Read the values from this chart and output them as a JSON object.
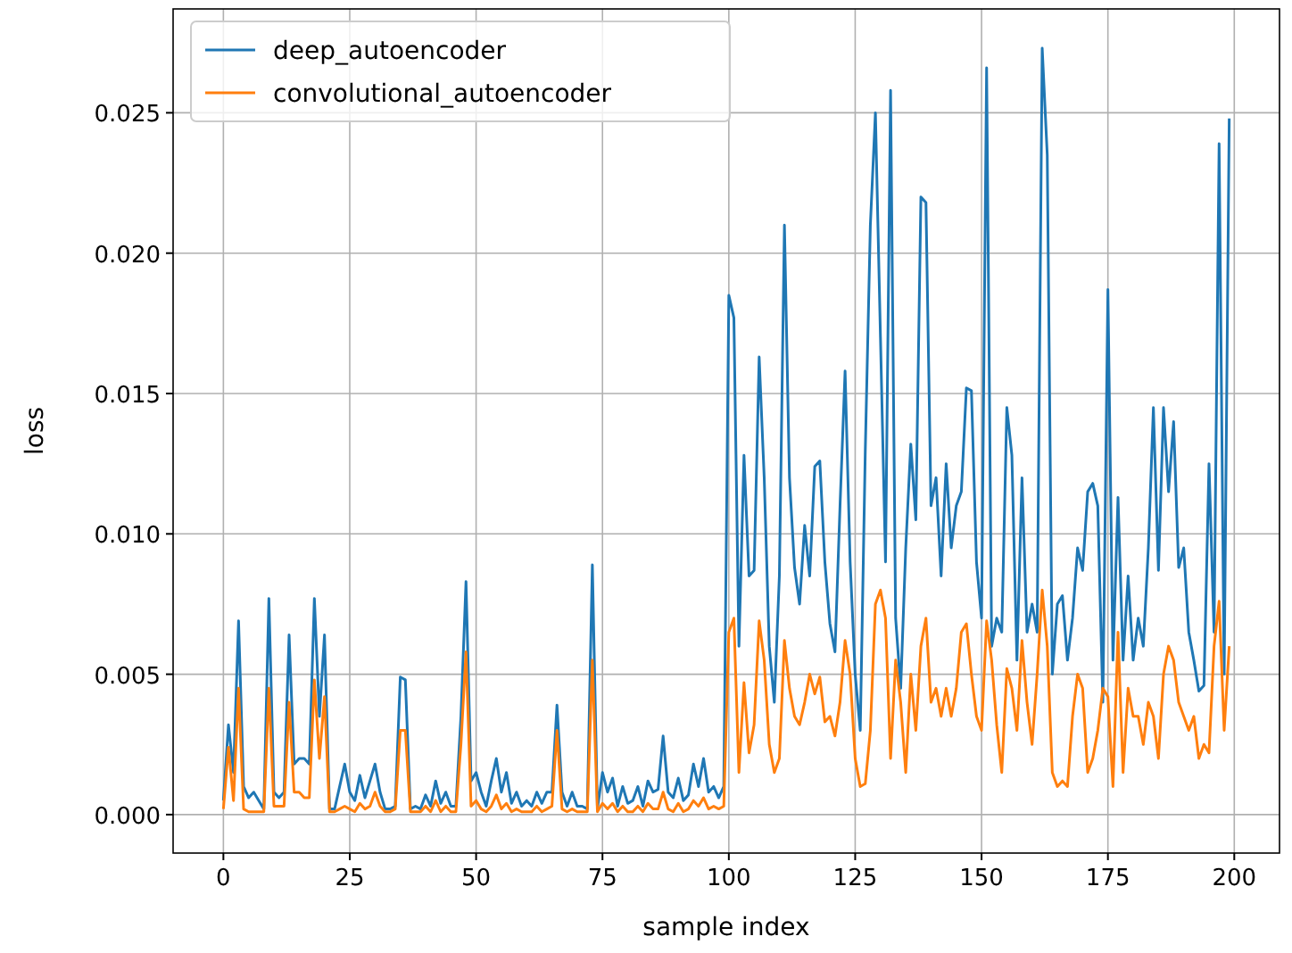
{
  "chart_data": {
    "type": "line",
    "xlabel": "sample index",
    "ylabel": "loss",
    "x": [
      0,
      1,
      2,
      3,
      4,
      5,
      6,
      7,
      8,
      9,
      10,
      11,
      12,
      13,
      14,
      15,
      16,
      17,
      18,
      19,
      20,
      21,
      22,
      23,
      24,
      25,
      26,
      27,
      28,
      29,
      30,
      31,
      32,
      33,
      34,
      35,
      36,
      37,
      38,
      39,
      40,
      41,
      42,
      43,
      44,
      45,
      46,
      47,
      48,
      49,
      50,
      51,
      52,
      53,
      54,
      55,
      56,
      57,
      58,
      59,
      60,
      61,
      62,
      63,
      64,
      65,
      66,
      67,
      68,
      69,
      70,
      71,
      72,
      73,
      74,
      75,
      76,
      77,
      78,
      79,
      80,
      81,
      82,
      83,
      84,
      85,
      86,
      87,
      88,
      89,
      90,
      91,
      92,
      93,
      94,
      95,
      96,
      97,
      98,
      99,
      100,
      101,
      102,
      103,
      104,
      105,
      106,
      107,
      108,
      109,
      110,
      111,
      112,
      113,
      114,
      115,
      116,
      117,
      118,
      119,
      120,
      121,
      122,
      123,
      124,
      125,
      126,
      127,
      128,
      129,
      130,
      131,
      132,
      133,
      134,
      135,
      136,
      137,
      138,
      139,
      140,
      141,
      142,
      143,
      144,
      145,
      146,
      147,
      148,
      149,
      150,
      151,
      152,
      153,
      154,
      155,
      156,
      157,
      158,
      159,
      160,
      161,
      162,
      163,
      164,
      165,
      166,
      167,
      168,
      169,
      170,
      171,
      172,
      173,
      174,
      175,
      176,
      177,
      178,
      179,
      180,
      181,
      182,
      183,
      184,
      185,
      186,
      187,
      188,
      189,
      190,
      191,
      192,
      193,
      194,
      195,
      196,
      197,
      198,
      199
    ],
    "series": [
      {
        "name": "deep_autoencoder",
        "color": "#1f77b4",
        "values": [
          0.0005,
          0.0032,
          0.0015,
          0.0069,
          0.001,
          0.0006,
          0.0008,
          0.0005,
          0.0002,
          0.0077,
          0.0008,
          0.0006,
          0.0008,
          0.0064,
          0.0018,
          0.002,
          0.002,
          0.0018,
          0.0077,
          0.0035,
          0.0064,
          0.0002,
          0.0002,
          0.001,
          0.0018,
          0.0008,
          0.0005,
          0.0014,
          0.0006,
          0.0012,
          0.0018,
          0.0008,
          0.0002,
          0.0002,
          0.0003,
          0.0049,
          0.0048,
          0.0002,
          0.0003,
          0.0002,
          0.0007,
          0.0003,
          0.0012,
          0.0004,
          0.0008,
          0.0003,
          0.0003,
          0.0035,
          0.0083,
          0.0012,
          0.0015,
          0.0008,
          0.0003,
          0.0012,
          0.002,
          0.0008,
          0.0015,
          0.0004,
          0.0008,
          0.0003,
          0.0005,
          0.0003,
          0.0008,
          0.0004,
          0.0008,
          0.0008,
          0.0039,
          0.0008,
          0.0003,
          0.0008,
          0.0003,
          0.0003,
          0.0002,
          0.0089,
          0.0002,
          0.0015,
          0.0008,
          0.0013,
          0.0003,
          0.001,
          0.0004,
          0.0005,
          0.001,
          0.0003,
          0.0012,
          0.0008,
          0.0009,
          0.0028,
          0.0008,
          0.0006,
          0.0013,
          0.0005,
          0.0007,
          0.0018,
          0.001,
          0.002,
          0.0008,
          0.001,
          0.0006,
          0.001,
          0.0185,
          0.0177,
          0.006,
          0.0128,
          0.0085,
          0.0087,
          0.0163,
          0.012,
          0.006,
          0.004,
          0.0085,
          0.021,
          0.012,
          0.0088,
          0.0075,
          0.0103,
          0.0085,
          0.0124,
          0.0126,
          0.009,
          0.0068,
          0.0058,
          0.011,
          0.0158,
          0.009,
          0.005,
          0.003,
          0.013,
          0.021,
          0.025,
          0.017,
          0.009,
          0.0258,
          0.007,
          0.0045,
          0.0095,
          0.0132,
          0.0105,
          0.022,
          0.0218,
          0.011,
          0.012,
          0.0085,
          0.0125,
          0.0095,
          0.011,
          0.0115,
          0.0152,
          0.0151,
          0.009,
          0.007,
          0.0266,
          0.006,
          0.007,
          0.0065,
          0.0145,
          0.0128,
          0.0055,
          0.012,
          0.0065,
          0.0075,
          0.0065,
          0.0273,
          0.0235,
          0.005,
          0.0075,
          0.0078,
          0.0055,
          0.007,
          0.0095,
          0.0087,
          0.0115,
          0.0118,
          0.011,
          0.004,
          0.0187,
          0.0055,
          0.0113,
          0.0055,
          0.0085,
          0.0055,
          0.007,
          0.006,
          0.0095,
          0.0145,
          0.0087,
          0.0145,
          0.0115,
          0.014,
          0.0088,
          0.0095,
          0.0065,
          0.0055,
          0.0044,
          0.0046,
          0.0125,
          0.0065,
          0.0239,
          0.005,
          0.0248
        ]
      },
      {
        "name": "convolutional_autoencoder",
        "color": "#ff7f0e",
        "values": [
          0.0002,
          0.0024,
          0.0005,
          0.0045,
          0.0002,
          0.0001,
          0.0001,
          0.0001,
          0.0001,
          0.0045,
          0.0003,
          0.0003,
          0.0003,
          0.004,
          0.0008,
          0.0008,
          0.0006,
          0.0006,
          0.0048,
          0.002,
          0.0042,
          0.0001,
          0.0001,
          0.0002,
          0.0003,
          0.0002,
          0.0001,
          0.0004,
          0.0002,
          0.0003,
          0.0008,
          0.0003,
          0.0001,
          0.0001,
          0.0002,
          0.003,
          0.003,
          0.0001,
          0.0001,
          0.0001,
          0.0003,
          0.0001,
          0.0005,
          0.0001,
          0.0003,
          0.0001,
          0.0001,
          0.0025,
          0.0058,
          0.0003,
          0.0005,
          0.0002,
          0.0001,
          0.0003,
          0.0007,
          0.0002,
          0.0004,
          0.0001,
          0.0002,
          0.0001,
          0.0001,
          0.0001,
          0.0003,
          0.0001,
          0.0002,
          0.0003,
          0.003,
          0.0002,
          0.0001,
          0.0002,
          0.0001,
          0.0001,
          0.0001,
          0.0055,
          0.0001,
          0.0004,
          0.0002,
          0.0004,
          0.0001,
          0.0003,
          0.0001,
          0.0001,
          0.0003,
          0.0001,
          0.0004,
          0.0002,
          0.0002,
          0.0008,
          0.0002,
          0.0001,
          0.0004,
          0.0001,
          0.0002,
          0.0005,
          0.0003,
          0.0006,
          0.0002,
          0.0003,
          0.0002,
          0.0003,
          0.0065,
          0.007,
          0.0015,
          0.0047,
          0.0022,
          0.0032,
          0.0069,
          0.0055,
          0.0025,
          0.0015,
          0.002,
          0.0062,
          0.0045,
          0.0035,
          0.0032,
          0.004,
          0.005,
          0.0043,
          0.0049,
          0.0033,
          0.0035,
          0.0028,
          0.004,
          0.0062,
          0.005,
          0.002,
          0.001,
          0.0011,
          0.003,
          0.0075,
          0.008,
          0.007,
          0.002,
          0.0055,
          0.004,
          0.0015,
          0.005,
          0.003,
          0.006,
          0.007,
          0.004,
          0.0045,
          0.0035,
          0.0045,
          0.0035,
          0.0045,
          0.0065,
          0.0068,
          0.005,
          0.0035,
          0.003,
          0.0069,
          0.0055,
          0.0032,
          0.0015,
          0.0052,
          0.0045,
          0.003,
          0.0062,
          0.004,
          0.0025,
          0.005,
          0.008,
          0.006,
          0.0015,
          0.001,
          0.0012,
          0.001,
          0.0035,
          0.005,
          0.0045,
          0.0015,
          0.002,
          0.003,
          0.0045,
          0.0042,
          0.001,
          0.0065,
          0.0015,
          0.0045,
          0.0035,
          0.0035,
          0.0025,
          0.004,
          0.0035,
          0.002,
          0.005,
          0.006,
          0.0055,
          0.004,
          0.0035,
          0.003,
          0.0035,
          0.002,
          0.0025,
          0.0022,
          0.006,
          0.0076,
          0.003,
          0.006
        ]
      }
    ],
    "xlim": [
      -9.95,
      208.95
    ],
    "ylim": [
      -0.00137,
      0.0287
    ],
    "xticks": [
      0,
      25,
      50,
      75,
      100,
      125,
      150,
      175,
      200
    ],
    "yticks": [
      {
        "value": 0,
        "label": "0.000"
      },
      {
        "value": 0.005,
        "label": "0.005"
      },
      {
        "value": 0.01,
        "label": "0.010"
      },
      {
        "value": 0.015,
        "label": "0.015"
      },
      {
        "value": 0.02,
        "label": "0.020"
      },
      {
        "value": 0.025,
        "label": "0.025"
      }
    ],
    "grid": true,
    "legend": "top left",
    "marker": "none",
    "line_style": "solid"
  }
}
